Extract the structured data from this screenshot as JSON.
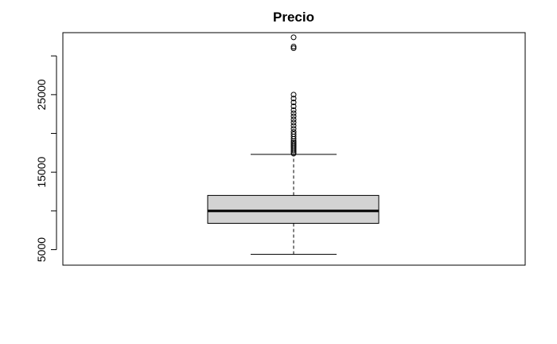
{
  "chart_data": {
    "type": "boxplot",
    "title": "Precio",
    "xlabel": "",
    "ylabel": "",
    "ylim": [
      3000,
      33000
    ],
    "yticks": [
      5000,
      15000,
      25000
    ],
    "ytick_labels": [
      "5000",
      "15000",
      "25000"
    ],
    "ytick_unlabeled": [
      10000,
      20000,
      30000
    ],
    "grid": false,
    "box_fill": "#d3d3d3",
    "box": {
      "lower_whisker": 4400,
      "q1": 8400,
      "median": 10000,
      "q3": 12000,
      "upper_whisker": 17300
    },
    "outliers": [
      17400,
      17600,
      17800,
      18000,
      18200,
      18400,
      18600,
      18800,
      19000,
      19300,
      19600,
      19900,
      20200,
      20600,
      21000,
      21400,
      21800,
      22200,
      22600,
      23000,
      23500,
      24000,
      24500,
      25000,
      31000,
      31200,
      32400
    ]
  }
}
